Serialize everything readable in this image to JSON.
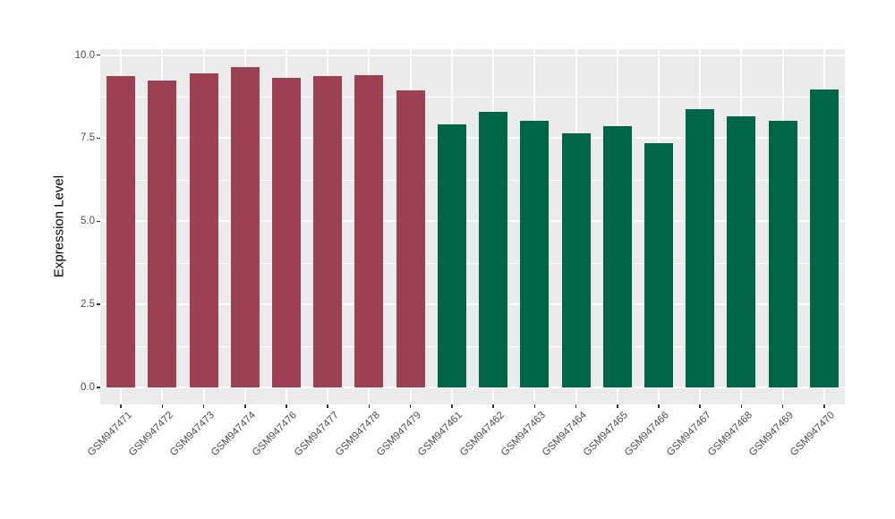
{
  "chart_data": {
    "type": "bar",
    "title": "",
    "xlabel": "",
    "ylabel": "Expression Level",
    "ylim": [
      0,
      10.17
    ],
    "yticks": [
      0.0,
      2.5,
      5.0,
      7.5,
      10.0
    ],
    "ytick_labels": [
      "0.0",
      "2.5",
      "5.0",
      "7.5",
      "10.0"
    ],
    "yminor_ticks": [
      1.25,
      3.75,
      6.25,
      8.75
    ],
    "grid": true,
    "legend_position": "none",
    "categories": [
      "GSM947471",
      "GSM947472",
      "GSM947473",
      "GSM947474",
      "GSM947476",
      "GSM947477",
      "GSM947478",
      "GSM947479",
      "GSM947461",
      "GSM947462",
      "GSM947463",
      "GSM947464",
      "GSM947465",
      "GSM947466",
      "GSM947467",
      "GSM947468",
      "GSM947469",
      "GSM947470"
    ],
    "values": [
      9.37,
      9.23,
      9.46,
      9.64,
      9.32,
      9.37,
      9.39,
      8.94,
      7.91,
      8.29,
      8.02,
      7.64,
      7.86,
      7.35,
      8.38,
      8.16,
      8.02,
      8.96
    ],
    "bar_groups": [
      "groupA",
      "groupA",
      "groupA",
      "groupA",
      "groupA",
      "groupA",
      "groupA",
      "groupA",
      "groupB",
      "groupB",
      "groupB",
      "groupB",
      "groupB",
      "groupB",
      "groupB",
      "groupB",
      "groupB",
      "groupB"
    ],
    "group_colors": {
      "groupA": "#9B4151",
      "groupB": "#006647"
    }
  },
  "style": {
    "panel_background": "#EBEBEB",
    "gridline_color": "#FFFFFF",
    "axis_text_color": "#4D4D4D",
    "axis_title_color": "#000000",
    "tick_mark_color": "#333333",
    "page_background": "#FFFFFF"
  }
}
